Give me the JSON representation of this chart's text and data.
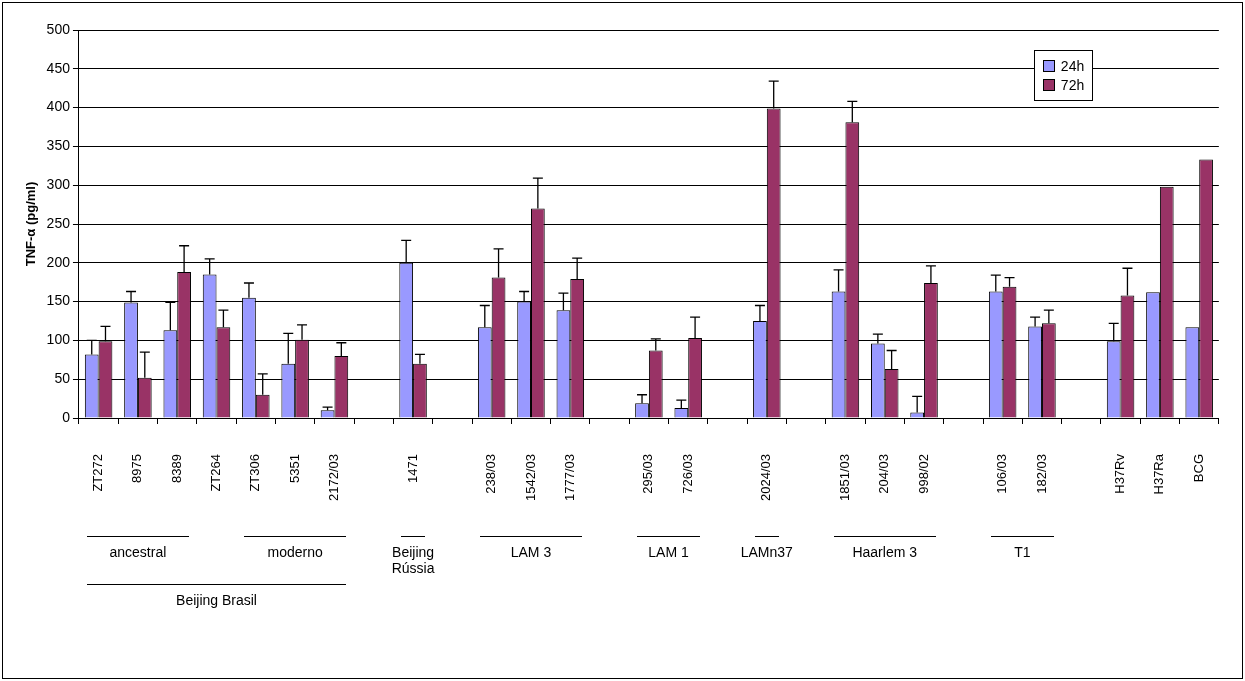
{
  "chart_data": {
    "type": "bar",
    "ylabel": "TNF-α (pg/ml)",
    "categories": [
      "ZT272",
      "8975",
      "8389",
      "ZT264",
      "ZT306",
      "5351",
      "2172/03",
      null,
      "1471",
      null,
      "238/03",
      "1542/03",
      "1777/03",
      null,
      "295/03",
      "726/03",
      null,
      "2024/03",
      null,
      "1851/03",
      "204/03",
      "998/02",
      null,
      "106/03",
      "182/03",
      null,
      "H37Rv",
      "H37Ra",
      "BCG"
    ],
    "series": [
      {
        "name": "24h",
        "color": "#9999ff",
        "values": [
          82,
          149,
          113,
          185,
          155,
          70,
          10,
          null,
          200,
          null,
          117,
          150,
          139,
          null,
          19,
          13,
          null,
          125,
          null,
          163,
          96,
          7,
          null,
          163,
          118,
          null,
          99,
          162,
          117
        ],
        "errors": [
          [
            82,
            100
          ],
          [
            149,
            163
          ],
          [
            113,
            149
          ],
          [
            185,
            205
          ],
          [
            155,
            174
          ],
          [
            70,
            109
          ],
          [
            10,
            14
          ],
          null,
          [
            200,
            229
          ],
          null,
          [
            117,
            145
          ],
          [
            150,
            163
          ],
          [
            139,
            161
          ],
          null,
          [
            19,
            30
          ],
          [
            13,
            23
          ],
          null,
          [
            125,
            145
          ],
          null,
          [
            163,
            191
          ],
          [
            96,
            108
          ],
          [
            7,
            28
          ],
          null,
          [
            163,
            184
          ],
          [
            118,
            130
          ],
          null,
          [
            99,
            122
          ],
          null,
          null
        ]
      },
      {
        "name": "72h",
        "color": "#993366",
        "values": [
          99,
          52,
          188,
          117,
          30,
          101,
          80,
          null,
          70,
          null,
          181,
          270,
          179,
          null,
          87,
          103,
          null,
          399,
          null,
          381,
          63,
          174,
          null,
          169,
          122,
          null,
          158,
          298,
          333
        ],
        "errors": [
          [
            99,
            118
          ],
          [
            52,
            85
          ],
          [
            188,
            222
          ],
          [
            117,
            139
          ],
          [
            30,
            57
          ],
          [
            101,
            120
          ],
          [
            80,
            97
          ],
          null,
          [
            70,
            82
          ],
          null,
          [
            181,
            218
          ],
          [
            270,
            309
          ],
          [
            179,
            206
          ],
          null,
          [
            87,
            102
          ],
          [
            103,
            130
          ],
          null,
          [
            399,
            434
          ],
          null,
          [
            381,
            408
          ],
          [
            63,
            87
          ],
          [
            174,
            196
          ],
          null,
          [
            169,
            181
          ],
          [
            122,
            139
          ],
          null,
          [
            158,
            193
          ],
          null,
          null
        ]
      }
    ],
    "ylim": [
      0,
      500
    ],
    "yticks": [
      0,
      50,
      100,
      150,
      200,
      250,
      300,
      350,
      400,
      450,
      500
    ],
    "grid": "y",
    "legend": "top right",
    "annotations": [
      "ancestral",
      "moderno",
      "Beijing Brasil",
      "Beijing Rússia",
      "LAM 3",
      "LAM 1",
      "LAMn37",
      "Haarlem 3",
      "T1"
    ]
  }
}
